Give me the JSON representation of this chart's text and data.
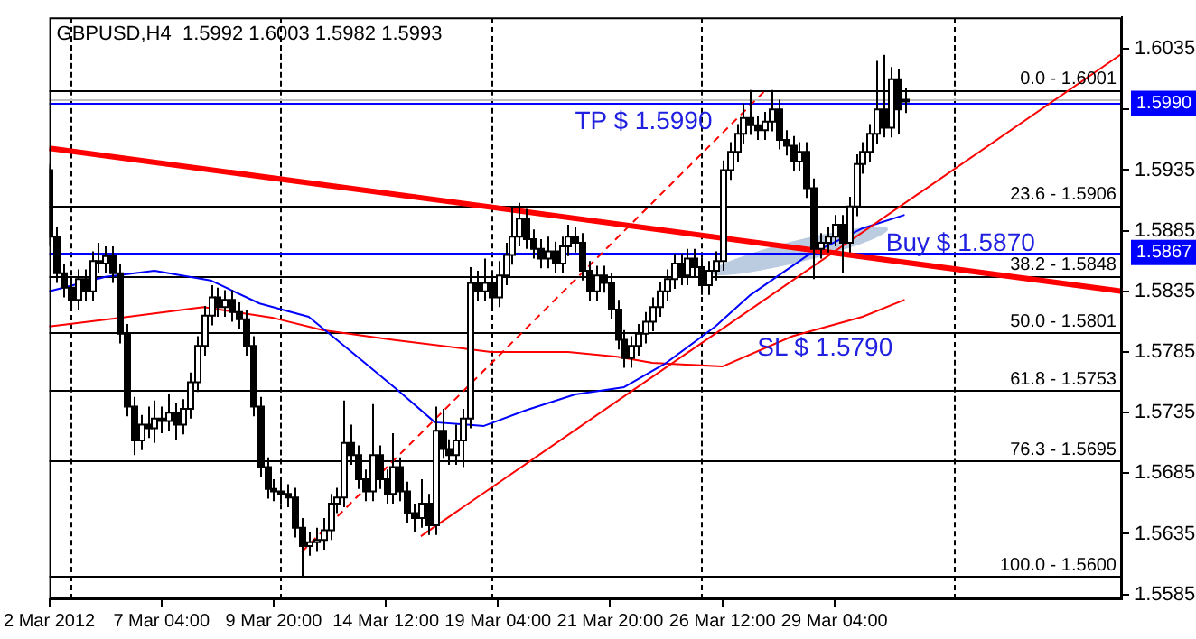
{
  "chart_data": {
    "type": "candlestick",
    "title": "GBPUSD,H4  1.5992 1.6003 1.5982 1.5993",
    "categories": [
      "2 Mar 2012",
      null,
      null,
      null,
      null,
      null,
      null,
      null,
      null,
      null,
      null,
      null,
      null,
      null,
      null,
      null,
      "7 Mar 04:00",
      null,
      null,
      null,
      null,
      null,
      null,
      null,
      null,
      null,
      null,
      null,
      null,
      null,
      null,
      null,
      "9 Mar 20:00",
      null,
      null,
      null,
      null,
      null,
      null,
      null,
      null,
      null,
      null,
      null,
      null,
      null,
      null,
      null,
      "14 Mar 12:00",
      null,
      null,
      null,
      null,
      null,
      null,
      null,
      null,
      null,
      null,
      null,
      null,
      null,
      null,
      null,
      "19 Mar 04:00",
      null,
      null,
      null,
      null,
      null,
      null,
      null,
      null,
      null,
      null,
      null,
      null,
      null,
      null,
      null,
      "21 Mar 20:00",
      null,
      null,
      null,
      null,
      null,
      null,
      null,
      null,
      null,
      null,
      null,
      null,
      null,
      null,
      null,
      "26 Mar 12:00",
      null,
      null,
      null,
      null,
      null,
      null,
      null,
      null,
      null,
      null,
      null,
      null,
      null,
      null,
      null,
      "29 Mar 04:00",
      null,
      null,
      null,
      null,
      null,
      null,
      null,
      null,
      null,
      null,
      null,
      null,
      null,
      null,
      null,
      null,
      null,
      null,
      null,
      null,
      null,
      null,
      null,
      null,
      null,
      null,
      null,
      null,
      null,
      null,
      null,
      null,
      null,
      null,
      null,
      null,
      null,
      null,
      null,
      null,
      null
    ],
    "ohlc": [
      [
        1.5935,
        1.594,
        1.5872,
        1.588
      ],
      [
        1.588,
        1.5888,
        1.5842,
        1.585
      ],
      [
        1.585,
        1.5858,
        1.583,
        1.5838
      ],
      [
        1.5838,
        1.5846,
        1.582,
        1.5828
      ],
      [
        1.5828,
        1.5853,
        1.582,
        1.5845
      ],
      [
        1.5845,
        1.5853,
        1.5827,
        1.5835
      ],
      [
        1.5835,
        1.5868,
        1.5827,
        1.586
      ],
      [
        1.586,
        1.5875,
        1.585,
        1.5858
      ],
      [
        1.5858,
        1.5872,
        1.585,
        1.5864
      ],
      [
        1.5864,
        1.5872,
        1.5842,
        1.585
      ],
      [
        1.585,
        1.5858,
        1.5792,
        1.58
      ],
      [
        1.58,
        1.5808,
        1.5732,
        1.574
      ],
      [
        1.574,
        1.5748,
        1.57,
        1.5712
      ],
      [
        1.5712,
        1.5733,
        1.5704,
        1.5725
      ],
      [
        1.5725,
        1.574,
        1.5714,
        1.5722
      ],
      [
        1.5722,
        1.5745,
        1.571,
        1.573
      ],
      [
        1.573,
        1.574,
        1.5718,
        1.5728
      ],
      [
        1.5728,
        1.575,
        1.572,
        1.5735
      ],
      [
        1.5735,
        1.5743,
        1.5712,
        1.5725
      ],
      [
        1.5725,
        1.5746,
        1.5717,
        1.5738
      ],
      [
        1.5738,
        1.5768,
        1.573,
        1.576
      ],
      [
        1.576,
        1.5798,
        1.5752,
        1.579
      ],
      [
        1.579,
        1.5823,
        1.5782,
        1.5815
      ],
      [
        1.5815,
        1.584,
        1.5807,
        1.583
      ],
      [
        1.583,
        1.5838,
        1.5814,
        1.5822
      ],
      [
        1.5822,
        1.5836,
        1.5814,
        1.5828
      ],
      [
        1.5828,
        1.5836,
        1.581,
        1.5818
      ],
      [
        1.5818,
        1.5826,
        1.5804,
        1.5812
      ],
      [
        1.5812,
        1.582,
        1.5782,
        1.579
      ],
      [
        1.579,
        1.5798,
        1.5732,
        1.574
      ],
      [
        1.574,
        1.5748,
        1.5682,
        1.569
      ],
      [
        1.569,
        1.5698,
        1.5664,
        1.5672
      ],
      [
        1.5672,
        1.568,
        1.5662,
        1.567
      ],
      [
        1.567,
        1.5678,
        1.566,
        1.5668
      ],
      [
        1.5668,
        1.5676,
        1.5657,
        1.5665
      ],
      [
        1.5665,
        1.5673,
        1.5632,
        1.564
      ],
      [
        1.564,
        1.5648,
        1.56,
        1.5625
      ],
      [
        1.5625,
        1.5636,
        1.5617,
        1.5628
      ],
      [
        1.5628,
        1.564,
        1.562,
        1.563
      ],
      [
        1.563,
        1.5648,
        1.5622,
        1.5638
      ],
      [
        1.5638,
        1.5668,
        1.563,
        1.566
      ],
      [
        1.566,
        1.5673,
        1.5652,
        1.5665
      ],
      [
        1.5665,
        1.5745,
        1.5657,
        1.571
      ],
      [
        1.571,
        1.5725,
        1.5692,
        1.57
      ],
      [
        1.57,
        1.5708,
        1.5672,
        1.568
      ],
      [
        1.568,
        1.5688,
        1.5662,
        1.567
      ],
      [
        1.567,
        1.5742,
        1.5662,
        1.57
      ],
      [
        1.57,
        1.5708,
        1.5672,
        1.568
      ],
      [
        1.568,
        1.5688,
        1.566,
        1.5668
      ],
      [
        1.5668,
        1.5718,
        1.566,
        1.569
      ],
      [
        1.569,
        1.5698,
        1.5662,
        1.567
      ],
      [
        1.567,
        1.5678,
        1.5644,
        1.5652
      ],
      [
        1.5652,
        1.566,
        1.5636,
        1.5648
      ],
      [
        1.5648,
        1.568,
        1.564,
        1.566
      ],
      [
        1.566,
        1.5668,
        1.5634,
        1.5642
      ],
      [
        1.5642,
        1.574,
        1.5634,
        1.572
      ],
      [
        1.572,
        1.5738,
        1.5697,
        1.5705
      ],
      [
        1.5705,
        1.5713,
        1.5692,
        1.57
      ],
      [
        1.57,
        1.5725,
        1.5692,
        1.5712
      ],
      [
        1.5712,
        1.5738,
        1.569,
        1.573
      ],
      [
        1.573,
        1.5855,
        1.5722,
        1.5842
      ],
      [
        1.5842,
        1.5852,
        1.5827,
        1.5835
      ],
      [
        1.5835,
        1.5862,
        1.5827,
        1.5842
      ],
      [
        1.5842,
        1.585,
        1.5822,
        1.583
      ],
      [
        1.583,
        1.586,
        1.5822,
        1.5848
      ],
      [
        1.5848,
        1.5875,
        1.584,
        1.5865
      ],
      [
        1.5865,
        1.5905,
        1.5857,
        1.588
      ],
      [
        1.588,
        1.5908,
        1.5872,
        1.5895
      ],
      [
        1.5895,
        1.5903,
        1.587,
        1.5878
      ],
      [
        1.5878,
        1.5886,
        1.5862,
        1.587
      ],
      [
        1.587,
        1.5878,
        1.5854,
        1.5862
      ],
      [
        1.5862,
        1.588,
        1.5854,
        1.5868
      ],
      [
        1.5868,
        1.5876,
        1.585,
        1.5858
      ],
      [
        1.5858,
        1.588,
        1.585,
        1.5872
      ],
      [
        1.5872,
        1.589,
        1.5864,
        1.588
      ],
      [
        1.588,
        1.5888,
        1.5867,
        1.5875
      ],
      [
        1.5875,
        1.5883,
        1.5844,
        1.5852
      ],
      [
        1.5852,
        1.586,
        1.5827,
        1.5835
      ],
      [
        1.5835,
        1.5856,
        1.5827,
        1.5848
      ],
      [
        1.5848,
        1.5856,
        1.5834,
        1.5842
      ],
      [
        1.5842,
        1.585,
        1.5812,
        1.582
      ],
      [
        1.582,
        1.5828,
        1.5787,
        1.5795
      ],
      [
        1.5795,
        1.5803,
        1.5772,
        1.578
      ],
      [
        1.578,
        1.5798,
        1.5772,
        1.579
      ],
      [
        1.579,
        1.5808,
        1.5782,
        1.58
      ],
      [
        1.58,
        1.5818,
        1.5792,
        1.581
      ],
      [
        1.581,
        1.583,
        1.5802,
        1.5822
      ],
      [
        1.5822,
        1.5843,
        1.5814,
        1.5835
      ],
      [
        1.5835,
        1.5853,
        1.5827,
        1.5845
      ],
      [
        1.5845,
        1.5866,
        1.5837,
        1.5858
      ],
      [
        1.5858,
        1.5866,
        1.584,
        1.5848
      ],
      [
        1.5848,
        1.587,
        1.584,
        1.5862
      ],
      [
        1.5862,
        1.587,
        1.5847,
        1.5855
      ],
      [
        1.5855,
        1.5863,
        1.5832,
        1.584
      ],
      [
        1.584,
        1.586,
        1.5832,
        1.5852
      ],
      [
        1.5852,
        1.5868,
        1.5844,
        1.586
      ],
      [
        1.586,
        1.5943,
        1.5852,
        1.5935
      ],
      [
        1.5935,
        1.5958,
        1.5927,
        1.595
      ],
      [
        1.595,
        1.5973,
        1.5942,
        1.5965
      ],
      [
        1.5965,
        1.599,
        1.5957,
        1.5978
      ],
      [
        1.5978,
        1.6001,
        1.5964,
        1.5972
      ],
      [
        1.5972,
        1.598,
        1.596,
        1.5968
      ],
      [
        1.5968,
        1.5983,
        1.596,
        1.5975
      ],
      [
        1.5975,
        1.6001,
        1.5967,
        1.5985
      ],
      [
        1.5985,
        1.5993,
        1.5952,
        1.596
      ],
      [
        1.596,
        1.5968,
        1.5947,
        1.5955
      ],
      [
        1.5955,
        1.5963,
        1.5934,
        1.5942
      ],
      [
        1.5942,
        1.5958,
        1.5934,
        1.595
      ],
      [
        1.595,
        1.5958,
        1.5912,
        1.592
      ],
      [
        1.592,
        1.5928,
        1.5845,
        1.587
      ],
      [
        1.587,
        1.5883,
        1.5862,
        1.5875
      ],
      [
        1.5875,
        1.5888,
        1.5867,
        1.588
      ],
      [
        1.588,
        1.5898,
        1.5872,
        1.589
      ],
      [
        1.589,
        1.5898,
        1.585,
        1.5875
      ],
      [
        1.5875,
        1.5913,
        1.5867,
        1.5905
      ],
      [
        1.5905,
        1.5948,
        1.5897,
        1.594
      ],
      [
        1.594,
        1.5958,
        1.5932,
        1.595
      ],
      [
        1.595,
        1.5973,
        1.5942,
        1.5965
      ],
      [
        1.5965,
        1.6025,
        1.5957,
        1.5985
      ],
      [
        1.5985,
        1.603,
        1.5962,
        1.597
      ],
      [
        1.597,
        1.602,
        1.5962,
        1.601
      ],
      [
        1.601,
        1.6018,
        1.5965,
        1.5985
      ],
      [
        1.5992,
        1.6003,
        1.5982,
        1.5993
      ],
      null,
      null,
      null,
      null,
      null,
      null,
      null,
      null,
      null,
      null,
      null,
      null,
      null,
      null,
      null,
      null,
      null,
      null,
      null,
      null,
      null,
      null,
      null,
      null,
      null,
      null,
      null,
      null,
      null,
      null,
      null
    ],
    "series": [
      {
        "type": "line",
        "color": "#ff0000",
        "values": [
          1.5953,
          null,
          null,
          null,
          null,
          null,
          null,
          null,
          null,
          null,
          null,
          null,
          null,
          null,
          null,
          null,
          null,
          null,
          null,
          null,
          null,
          null,
          null,
          null,
          null,
          null,
          null,
          null,
          null,
          null,
          null,
          null,
          null,
          null,
          null,
          null,
          null,
          null,
          null,
          null,
          null,
          null,
          null,
          null,
          null,
          null,
          null,
          null,
          null,
          null,
          null,
          null,
          null,
          null,
          null,
          null,
          null,
          null,
          null,
          null,
          null,
          null,
          null,
          null,
          null,
          null,
          null,
          null,
          null,
          null,
          null,
          null,
          null,
          null,
          null,
          null,
          null,
          null,
          null,
          null,
          null,
          null,
          null,
          null,
          null,
          null,
          null,
          null,
          null,
          null,
          null,
          null,
          null,
          null,
          null,
          null,
          null,
          null,
          null,
          null,
          null,
          null,
          null,
          null,
          null,
          null,
          null,
          null,
          null,
          null,
          null,
          null,
          null,
          null,
          null,
          null,
          null,
          null,
          null,
          null,
          null,
          null,
          null,
          null,
          null,
          null,
          null,
          null,
          null,
          null,
          null,
          null,
          null,
          null,
          null,
          null,
          null,
          null,
          null,
          null,
          null,
          null,
          null,
          null,
          null,
          null,
          null,
          null,
          null,
          null,
          null,
          null,
          null,
          1.5835
        ]
      },
      {
        "type": "line",
        "color": "#ff0000",
        "values": [
          null,
          null,
          null,
          null,
          null,
          null,
          null,
          null,
          null,
          null,
          null,
          null,
          null,
          null,
          null,
          null,
          null,
          null,
          null,
          null,
          null,
          null,
          null,
          null,
          null,
          null,
          null,
          null,
          null,
          null,
          null,
          null,
          null,
          null,
          null,
          null,
          null,
          null,
          null,
          null,
          null,
          null,
          null,
          null,
          null,
          null,
          null,
          null,
          null,
          null,
          null,
          null,
          null,
          1.5633,
          null,
          null,
          null,
          null,
          null,
          null,
          null,
          null,
          null,
          null,
          null,
          null,
          null,
          null,
          null,
          null,
          null,
          null,
          null,
          null,
          null,
          null,
          null,
          null,
          null,
          null,
          null,
          null,
          null,
          null,
          null,
          null,
          null,
          null,
          null,
          null,
          null,
          null,
          null,
          null,
          null,
          null,
          null,
          null,
          null,
          null,
          null,
          null,
          null,
          null,
          null,
          null,
          null,
          null,
          null,
          null,
          null,
          null,
          null,
          null,
          null,
          null,
          null,
          null,
          null,
          null,
          null,
          null,
          null,
          null,
          null,
          null,
          null,
          null,
          null,
          null,
          null,
          null,
          null,
          null,
          null,
          null,
          null,
          null,
          null,
          null,
          null,
          null,
          null,
          null,
          null,
          null,
          null,
          null,
          null,
          null,
          null,
          null,
          null,
          1.6031
        ]
      },
      {
        "type": "line",
        "color": "#ff0000",
        "line_style": "dashed",
        "values": [
          null,
          null,
          null,
          null,
          null,
          null,
          null,
          null,
          null,
          null,
          null,
          null,
          null,
          null,
          null,
          null,
          null,
          null,
          null,
          null,
          null,
          null,
          null,
          null,
          null,
          null,
          null,
          null,
          null,
          null,
          null,
          null,
          null,
          null,
          null,
          null,
          1.562,
          null,
          null,
          null,
          null,
          null,
          null,
          null,
          null,
          null,
          null,
          null,
          null,
          null,
          null,
          null,
          null,
          null,
          null,
          null,
          null,
          null,
          null,
          null,
          null,
          null,
          null,
          null,
          null,
          null,
          null,
          null,
          null,
          null,
          null,
          null,
          null,
          null,
          null,
          null,
          null,
          null,
          null,
          null,
          null,
          null,
          null,
          null,
          null,
          null,
          null,
          null,
          null,
          null,
          null,
          null,
          null,
          null,
          null,
          null,
          null,
          null,
          null,
          null,
          null,
          null,
          1.6,
          null,
          null,
          null,
          null,
          null,
          null,
          null,
          null,
          null,
          null,
          null,
          null,
          null,
          null,
          null,
          null,
          null,
          null,
          null,
          null,
          null,
          null,
          null,
          null,
          null,
          null,
          null,
          null,
          null,
          null,
          null,
          null,
          null,
          null,
          null,
          null,
          null,
          null,
          null,
          null,
          null,
          null,
          null,
          null,
          null,
          null,
          null,
          null,
          null,
          null,
          null
        ]
      },
      {
        "type": "line",
        "color": "#0000ff",
        "values": [
          1.5835,
          null,
          null,
          null,
          null,
          null,
          null,
          null,
          1.5847,
          null,
          null,
          null,
          null,
          null,
          null,
          1.5852,
          null,
          null,
          null,
          null,
          null,
          null,
          null,
          1.5844,
          null,
          null,
          null,
          null,
          null,
          null,
          1.5825,
          null,
          null,
          null,
          null,
          null,
          null,
          1.5814,
          null,
          null,
          null,
          null,
          null,
          null,
          null,
          1.5776,
          null,
          null,
          null,
          null,
          1.5752,
          null,
          null,
          null,
          null,
          1.5727,
          null,
          null,
          null,
          null,
          null,
          null,
          1.5724,
          null,
          null,
          null,
          null,
          null,
          1.5737,
          null,
          null,
          null,
          null,
          null,
          null,
          1.575,
          null,
          null,
          null,
          null,
          null,
          null,
          1.5756,
          null,
          null,
          null,
          null,
          null,
          1.5776,
          null,
          null,
          null,
          null,
          null,
          null,
          1.5806,
          null,
          null,
          null,
          null,
          1.5832,
          null,
          null,
          null,
          null,
          null,
          null,
          null,
          1.5864,
          null,
          null,
          null,
          null,
          null,
          null,
          null,
          1.5887,
          null,
          null,
          null,
          null,
          null,
          1.5898,
          null,
          null,
          null,
          null,
          null,
          null,
          null,
          null,
          null,
          null,
          null,
          null,
          null,
          null,
          null,
          null,
          null,
          null,
          null,
          null,
          null,
          null,
          null,
          null,
          null,
          null,
          null,
          null,
          null,
          null,
          null
        ]
      },
      {
        "type": "line",
        "color": "#ff0000",
        "values": [
          1.5806,
          null,
          null,
          null,
          null,
          null,
          null,
          null,
          null,
          null,
          1.5813,
          null,
          null,
          null,
          null,
          null,
          null,
          null,
          null,
          null,
          null,
          null,
          1.5822,
          null,
          null,
          null,
          null,
          null,
          null,
          null,
          null,
          null,
          1.5813,
          null,
          null,
          null,
          null,
          null,
          null,
          1.5803,
          null,
          null,
          null,
          null,
          null,
          null,
          null,
          null,
          null,
          1.5795,
          null,
          null,
          null,
          null,
          null,
          null,
          null,
          null,
          null,
          null,
          null,
          null,
          null,
          1.5785,
          null,
          null,
          null,
          null,
          null,
          null,
          null,
          null,
          null,
          null,
          1.5785,
          null,
          null,
          null,
          null,
          null,
          null,
          1.5781,
          null,
          null,
          null,
          null,
          1.5776,
          null,
          null,
          null,
          null,
          null,
          null,
          null,
          null,
          null,
          1.5773,
          null,
          null,
          null,
          null,
          null,
          null,
          null,
          null,
          null,
          1.5798,
          null,
          null,
          null,
          null,
          null,
          null,
          null,
          null,
          null,
          1.5814,
          null,
          null,
          null,
          null,
          null,
          1.5828,
          null,
          null,
          null,
          null,
          null,
          null,
          null,
          null,
          null,
          null,
          null,
          null,
          null,
          null,
          null,
          null,
          null,
          null,
          null,
          null,
          null,
          null,
          null,
          null,
          null,
          null,
          null,
          null,
          null,
          null,
          null
        ]
      }
    ],
    "ylim": [
      1.5581,
      1.6061
    ],
    "yticks": [
      1.6035,
      {
        "value": 1.5985,
        "label": null
      },
      1.5935,
      1.5885,
      1.5835,
      1.5785,
      1.5735,
      1.5685,
      1.5635,
      1.5585
    ],
    "ref_lines": [
      {
        "axis": "y",
        "value": 1.6001
      },
      {
        "axis": "y",
        "value": 1.5906
      },
      {
        "axis": "y",
        "value": 1.5848
      },
      {
        "axis": "y",
        "value": 1.5801
      },
      {
        "axis": "y",
        "value": 1.5753
      },
      {
        "axis": "y",
        "value": 1.5695
      },
      {
        "axis": "y",
        "value": 1.56
      },
      {
        "axis": "y",
        "value": 1.5993,
        "color": "#c0c0c0"
      },
      {
        "axis": "y",
        "value": 1.599,
        "label": "1.5990",
        "color": "#0000ff"
      },
      {
        "axis": "y",
        "value": 1.5867,
        "label": "1.5867",
        "color": "#0000ff"
      }
    ],
    "annotations": [
      "TP $ 1.5990",
      "Buy $ 1.5870",
      "SL $ 1.5790",
      {
        "text": "0.0 - 1.6001",
        "y": 1.6001
      },
      {
        "text": "23.6 - 1.5906",
        "y": 1.5906
      },
      {
        "text": "38.2 - 1.5848",
        "y": 1.5848
      },
      {
        "text": "50.0 - 1.5801",
        "y": 1.5801
      },
      {
        "text": "61.8 - 1.5753",
        "y": 1.5753
      },
      {
        "text": "76.3 - 1.5695",
        "y": 1.5695
      },
      {
        "text": "100.0 - 1.5600",
        "y": 1.56
      }
    ],
    "grid": false,
    "legend": false
  }
}
